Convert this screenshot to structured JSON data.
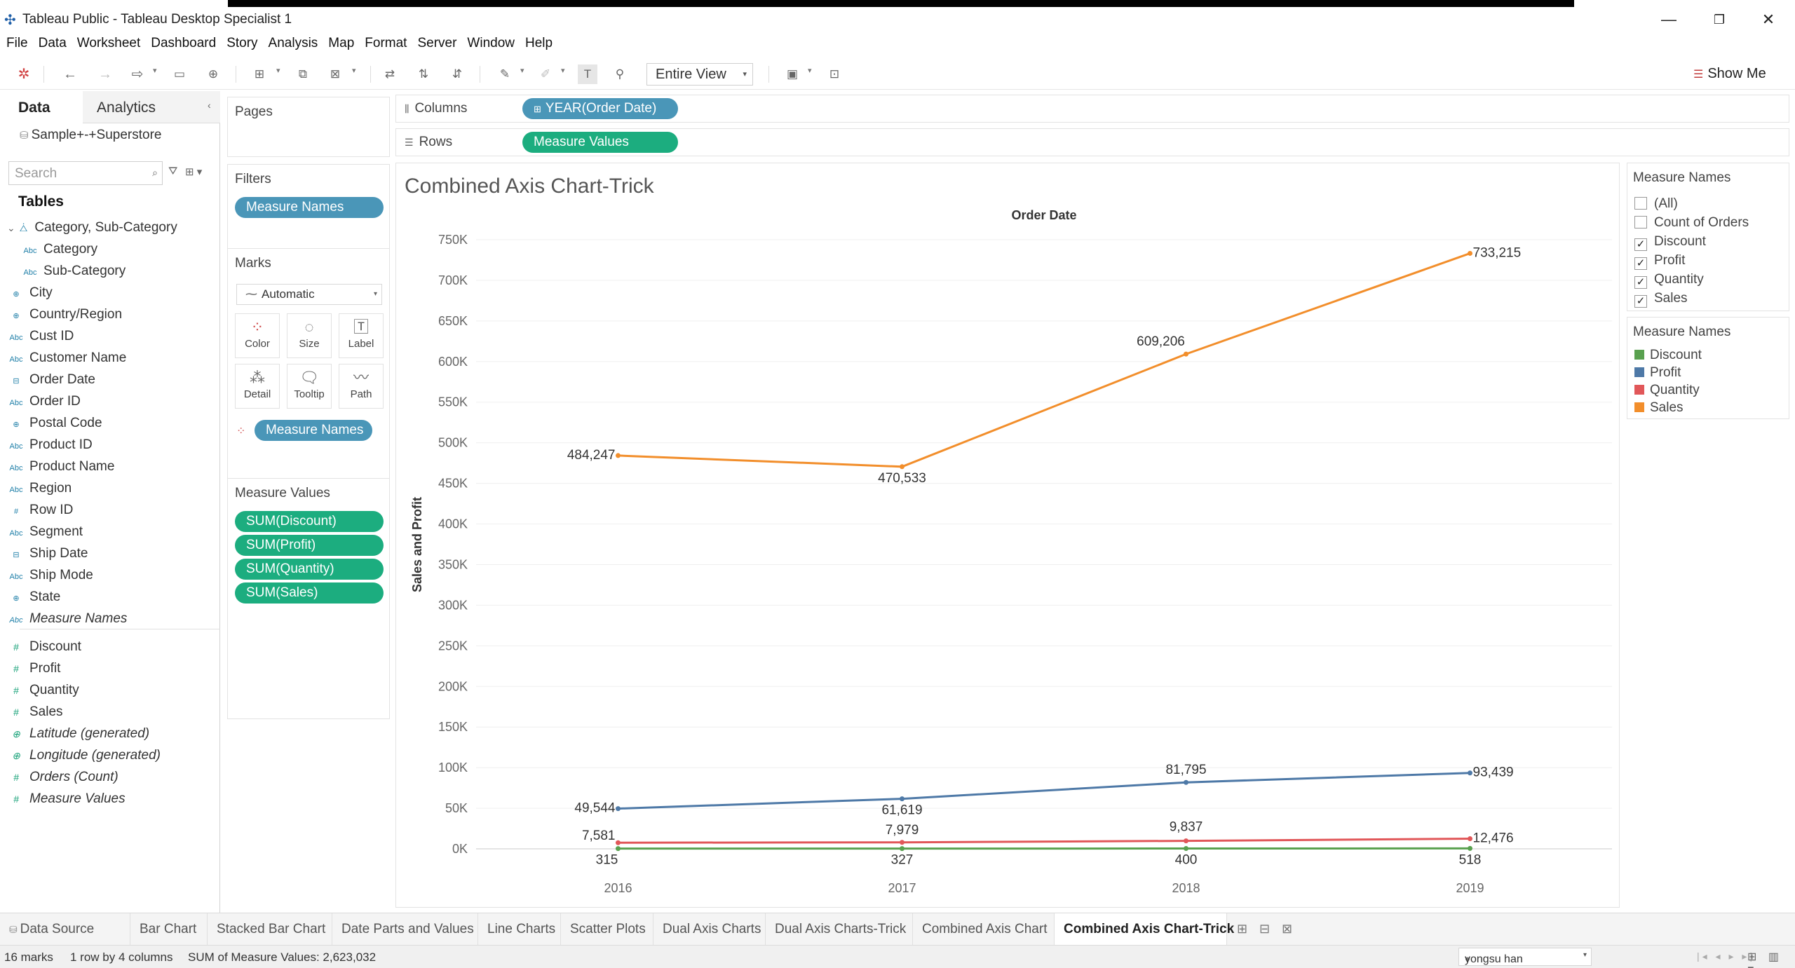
{
  "window": {
    "title": "Tableau Public - Tableau Desktop Specialist 1",
    "minimize": "—",
    "restore": "❐",
    "close": "✕"
  },
  "menu": [
    "File",
    "Data",
    "Worksheet",
    "Dashboard",
    "Story",
    "Analysis",
    "Map",
    "Format",
    "Server",
    "Window",
    "Help"
  ],
  "toolbar": {
    "fit": "Entire View",
    "show_me": "Show Me"
  },
  "data_pane": {
    "tab_data": "Data",
    "tab_analytics": "Analytics",
    "datasource": "Sample+-+Superstore",
    "search_placeholder": "Search",
    "tables_header": "Tables",
    "hierarchy": "Category, Sub-Category",
    "fields": [
      {
        "name": "Category",
        "type": "Abc"
      },
      {
        "name": "Sub-Category",
        "type": "Abc"
      },
      {
        "name": "City",
        "type": "geo"
      },
      {
        "name": "Country/Region",
        "type": "geo"
      },
      {
        "name": "Cust ID",
        "type": "Abc"
      },
      {
        "name": "Customer Name",
        "type": "Abc"
      },
      {
        "name": "Order Date",
        "type": "date"
      },
      {
        "name": "Order ID",
        "type": "Abc"
      },
      {
        "name": "Postal Code",
        "type": "geo"
      },
      {
        "name": "Product ID",
        "type": "Abc"
      },
      {
        "name": "Product Name",
        "type": "Abc"
      },
      {
        "name": "Region",
        "type": "Abc"
      },
      {
        "name": "Row ID",
        "type": "#"
      },
      {
        "name": "Segment",
        "type": "Abc"
      },
      {
        "name": "Ship Date",
        "type": "date"
      },
      {
        "name": "Ship Mode",
        "type": "Abc"
      },
      {
        "name": "State",
        "type": "geo"
      },
      {
        "name": "Measure Names",
        "type": "Abc"
      }
    ],
    "measures": [
      {
        "name": "Discount",
        "type": "#"
      },
      {
        "name": "Profit",
        "type": "#"
      },
      {
        "name": "Quantity",
        "type": "#"
      },
      {
        "name": "Sales",
        "type": "#"
      },
      {
        "name": "Latitude (generated)",
        "type": "geo"
      },
      {
        "name": "Longitude (generated)",
        "type": "geo"
      },
      {
        "name": "Orders (Count)",
        "type": "#"
      },
      {
        "name": "Measure Values",
        "type": "#"
      }
    ]
  },
  "cards": {
    "pages": "Pages",
    "filters": "Filters",
    "filter_pill": "Measure Names",
    "marks": "Marks",
    "mark_type": "Automatic",
    "mark_buttons": [
      "Color",
      "Size",
      "Label",
      "Detail",
      "Tooltip",
      "Path"
    ],
    "marks_pill": "Measure Names",
    "measure_values": "Measure Values",
    "mv_pills": [
      "SUM(Discount)",
      "SUM(Profit)",
      "SUM(Quantity)",
      "SUM(Sales)"
    ]
  },
  "shelves": {
    "columns_label": "Columns",
    "columns_pill": "YEAR(Order Date)",
    "rows_label": "Rows",
    "rows_pill": "Measure Values"
  },
  "viz_title": "Combined Axis Chart-Trick",
  "chart_data": {
    "type": "line",
    "title": "Combined Axis Chart-Trick",
    "xlabel": "Order Date",
    "ylabel": "Sales and Profit",
    "categories": [
      "2016",
      "2017",
      "2018",
      "2019"
    ],
    "ylim": [
      0,
      750000
    ],
    "yticks": [
      0,
      50000,
      100000,
      150000,
      200000,
      250000,
      300000,
      350000,
      400000,
      450000,
      500000,
      550000,
      600000,
      650000,
      700000,
      750000
    ],
    "ytick_labels": [
      "0K",
      "50K",
      "100K",
      "150K",
      "200K",
      "250K",
      "300K",
      "350K",
      "400K",
      "450K",
      "500K",
      "550K",
      "600K",
      "650K",
      "700K",
      "750K"
    ],
    "grid": true,
    "series": [
      {
        "name": "Sales",
        "color": "#f28e2b",
        "values": [
          484247,
          470533,
          609206,
          733215
        ],
        "labels": [
          "484,247",
          "470,533",
          "609,206",
          "733,215"
        ]
      },
      {
        "name": "Profit",
        "color": "#4e79a7",
        "values": [
          49544,
          61619,
          81795,
          93439
        ],
        "labels": [
          "49,544",
          "61,619",
          "81,795",
          "93,439"
        ]
      },
      {
        "name": "Quantity",
        "color": "#e15759",
        "values": [
          7581,
          7979,
          9837,
          12476
        ],
        "labels": [
          "7,581",
          "7,979",
          "9,837",
          "12,476"
        ]
      },
      {
        "name": "Discount",
        "color": "#59a14f",
        "values": [
          315,
          327,
          400,
          518
        ],
        "labels": [
          "315",
          "327",
          "400",
          "518"
        ]
      }
    ]
  },
  "filter_legend": {
    "title": "Measure Names",
    "items": [
      {
        "label": "(All)",
        "checked": false
      },
      {
        "label": "Count of Orders",
        "checked": false
      },
      {
        "label": "Discount",
        "checked": true
      },
      {
        "label": "Profit",
        "checked": true
      },
      {
        "label": "Quantity",
        "checked": true
      },
      {
        "label": "Sales",
        "checked": true
      }
    ]
  },
  "color_legend": {
    "title": "Measure Names",
    "items": [
      {
        "label": "Discount",
        "color": "#59a14f"
      },
      {
        "label": "Profit",
        "color": "#4e79a7"
      },
      {
        "label": "Quantity",
        "color": "#e15759"
      },
      {
        "label": "Sales",
        "color": "#f28e2b"
      }
    ]
  },
  "sheet_tabs": [
    "Data Source",
    "Bar Chart",
    "Stacked Bar Chart",
    "Date Parts and Values",
    "Line Charts",
    "Scatter Plots",
    "Dual Axis Charts",
    "Dual Axis Charts-Trick",
    "Combined Axis Chart",
    "Combined Axis Chart-Trick"
  ],
  "active_tab": "Combined Axis Chart-Trick",
  "status": {
    "marks": "16 marks",
    "dims": "1 row by 4 columns",
    "sum": "SUM of Measure Values: 2,623,032",
    "user": "yongsu han"
  }
}
